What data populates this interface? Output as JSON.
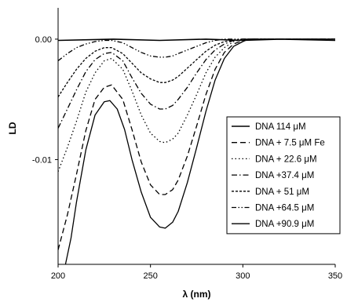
{
  "chart_data": {
    "type": "line",
    "xlabel": "λ (nm)",
    "ylabel": "LD",
    "xlim": [
      200,
      350
    ],
    "ylim": [
      -0.0187,
      0.0026
    ],
    "x_ticks": [
      200,
      250,
      300,
      350
    ],
    "x_tick_labels": [
      "200",
      "250",
      "300",
      "350"
    ],
    "y_ticks": [
      0.0,
      -0.01
    ],
    "y_tick_labels": [
      "0.00",
      "-0.01"
    ],
    "grid": false,
    "legend_position": "right",
    "series": [
      {
        "name": "DNA 114 μM",
        "dash": "solid",
        "x": [
          200,
          230,
          255,
          280,
          300,
          320,
          350
        ],
        "y": [
          -0.0001,
          0.0,
          -0.0001,
          0.0,
          -0.0001,
          0.0,
          -0.0001
        ]
      },
      {
        "name": "DNA + 7.5 μM Fe",
        "dash": "dash",
        "x": [
          200,
          205,
          210,
          215,
          220,
          225,
          229,
          235,
          240,
          245,
          250,
          255,
          258,
          262,
          265,
          270,
          275,
          280,
          285,
          290,
          295,
          300,
          305,
          320,
          350
        ],
        "y": [
          -0.0175,
          -0.0146,
          -0.0112,
          -0.0076,
          -0.005,
          -0.004,
          -0.0038,
          -0.005,
          -0.0075,
          -0.0102,
          -0.0121,
          -0.0129,
          -0.0129,
          -0.0125,
          -0.0117,
          -0.0097,
          -0.0072,
          -0.0046,
          -0.0025,
          -0.0011,
          -0.0004,
          -0.0001,
          0.0,
          0.0,
          0.0
        ]
      },
      {
        "name": "DNA + 22.6 μM",
        "dash": "dot",
        "x": [
          200,
          205,
          210,
          215,
          220,
          225,
          229,
          235,
          240,
          245,
          250,
          255,
          258,
          262,
          265,
          270,
          275,
          280,
          285,
          290,
          295,
          300,
          305,
          320,
          350
        ],
        "y": [
          -0.011,
          -0.009,
          -0.0068,
          -0.0044,
          -0.0028,
          -0.0018,
          -0.0016,
          -0.0025,
          -0.0043,
          -0.0063,
          -0.0078,
          -0.0085,
          -0.0086,
          -0.0083,
          -0.0078,
          -0.0063,
          -0.0046,
          -0.0028,
          -0.0015,
          -0.0007,
          -0.0002,
          0.0,
          0.0,
          0.0,
          0.0
        ]
      },
      {
        "name": "DNA +37.4 μM",
        "dash": "dashdot",
        "x": [
          200,
          205,
          210,
          215,
          220,
          225,
          229,
          235,
          240,
          245,
          250,
          255,
          258,
          262,
          265,
          270,
          275,
          280,
          285,
          290,
          295,
          300,
          305,
          320,
          350
        ],
        "y": [
          -0.0074,
          -0.0058,
          -0.0042,
          -0.0027,
          -0.0017,
          -0.0012,
          -0.0011,
          -0.0018,
          -0.0032,
          -0.0045,
          -0.0054,
          -0.0058,
          -0.0058,
          -0.0055,
          -0.005,
          -0.004,
          -0.0028,
          -0.0017,
          -0.0009,
          -0.0004,
          -0.0001,
          0.0,
          0.0,
          0.0,
          0.0
        ]
      },
      {
        "name": "DNA +  51 μM",
        "dash": "shortdash",
        "x": [
          200,
          205,
          210,
          215,
          220,
          225,
          229,
          235,
          240,
          245,
          250,
          255,
          258,
          262,
          265,
          270,
          275,
          280,
          285,
          290,
          295,
          300,
          305,
          320,
          350
        ],
        "y": [
          -0.0048,
          -0.0036,
          -0.0025,
          -0.0016,
          -0.001,
          -0.0007,
          -0.0007,
          -0.0012,
          -0.002,
          -0.0028,
          -0.0033,
          -0.0036,
          -0.0036,
          -0.0034,
          -0.0031,
          -0.0024,
          -0.0017,
          -0.001,
          -0.0005,
          -0.0002,
          -0.0001,
          0.0,
          0.0,
          0.0,
          0.0
        ]
      },
      {
        "name": "DNA +64.5 μM",
        "dash": "dashdotdot",
        "x": [
          200,
          205,
          210,
          215,
          220,
          225,
          229,
          235,
          240,
          245,
          250,
          255,
          258,
          262,
          265,
          270,
          275,
          280,
          285,
          290,
          295,
          300,
          305,
          320,
          350
        ],
        "y": [
          -0.0018,
          -0.0012,
          -0.0007,
          -0.0004,
          -0.0002,
          -0.0001,
          -0.0001,
          -0.0003,
          -0.0007,
          -0.0011,
          -0.0014,
          -0.0015,
          -0.0015,
          -0.0014,
          -0.0012,
          -0.0009,
          -0.0006,
          -0.0003,
          -0.0001,
          0.0,
          0.0,
          0.0,
          0.0,
          0.0,
          0.0
        ]
      },
      {
        "name": "DNA +90.9 μM",
        "dash": "solid",
        "x": [
          204,
          207,
          210,
          215,
          220,
          225,
          228,
          232,
          236,
          240,
          245,
          250,
          255,
          258,
          262,
          265,
          270,
          275,
          280,
          285,
          290,
          295,
          300,
          303,
          307,
          320,
          350
        ],
        "y": [
          -0.0187,
          -0.0165,
          -0.0135,
          -0.0092,
          -0.0063,
          -0.0052,
          -0.0051,
          -0.0058,
          -0.0075,
          -0.01,
          -0.0127,
          -0.0148,
          -0.0156,
          -0.0157,
          -0.0152,
          -0.0143,
          -0.0119,
          -0.009,
          -0.006,
          -0.0034,
          -0.0016,
          -0.0006,
          -0.0002,
          0.0,
          0.0,
          0.0,
          0.0
        ]
      }
    ]
  }
}
